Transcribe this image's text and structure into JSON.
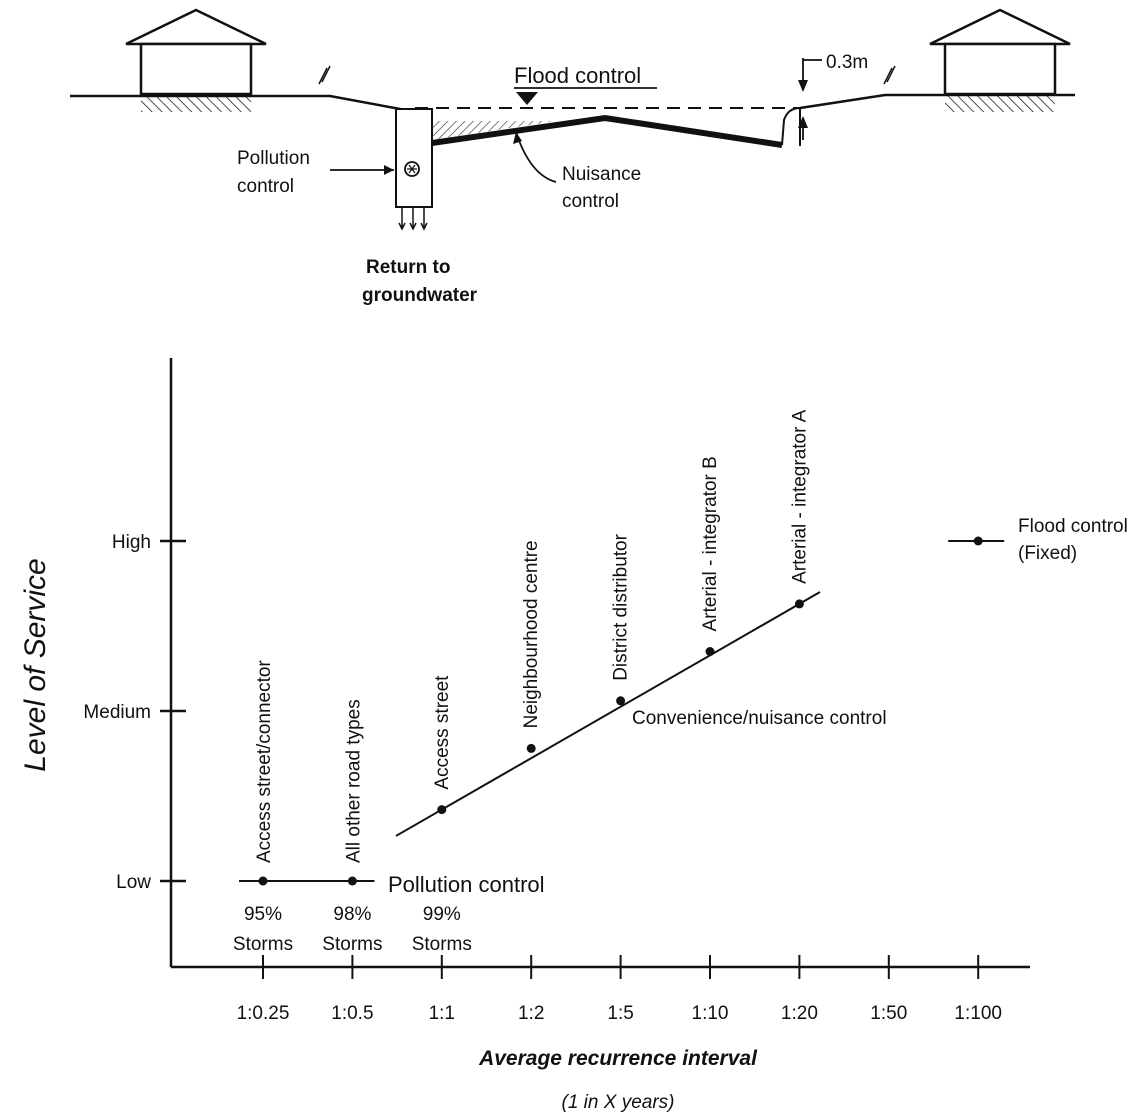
{
  "section": {
    "labels": {
      "flood_control": "Flood control",
      "clearance": "0.3m",
      "pollution_control_1": "Pollution",
      "pollution_control_2": "control",
      "nuisance_control_1": "Nuisance",
      "nuisance_control_2": "control",
      "return_1": "Return to",
      "return_2": "groundwater"
    }
  },
  "chart_data": {
    "type": "scatter",
    "title": "",
    "xlabel": "Average recurrence interval",
    "xlabel_sub": "(1 in X years)",
    "ylabel": "Level of Service",
    "x_categories": [
      "1:0.25",
      "1:0.5",
      "1:1",
      "1:2",
      "1:5",
      "1:10",
      "1:20",
      "1:50",
      "1:100"
    ],
    "y_levels": [
      "Low",
      "Medium",
      "High"
    ],
    "series": [
      {
        "name": "Pollution control",
        "points": [
          {
            "x": "1:0.25",
            "level": 0.0,
            "label": "Access street/connector",
            "note_1": "95%",
            "note_2": "Storms"
          },
          {
            "x": "1:0.5",
            "level": 0.0,
            "label": "All other road types",
            "note_1": "98%",
            "note_2": "Storms"
          }
        ],
        "extra_note": {
          "x": "1:1",
          "note_1": "99%",
          "note_2": "Storms"
        }
      },
      {
        "name": "Convenience/nuisance control",
        "points": [
          {
            "x": "1:1",
            "level": 0.42,
            "label": "Access street"
          },
          {
            "x": "1:2",
            "level": 0.78,
            "label": "Neighbourhood centre"
          },
          {
            "x": "1:5",
            "level": 1.06,
            "label": "District distributor"
          },
          {
            "x": "1:10",
            "level": 1.35,
            "label": "Arterial - integrator B"
          },
          {
            "x": "1:20",
            "level": 1.63,
            "label": "Arterial - integrator A"
          }
        ]
      },
      {
        "name": "Flood control",
        "name_2": "(Fixed)",
        "points": [
          {
            "x": "1:100",
            "level": 2.0,
            "label": ""
          }
        ]
      }
    ]
  }
}
